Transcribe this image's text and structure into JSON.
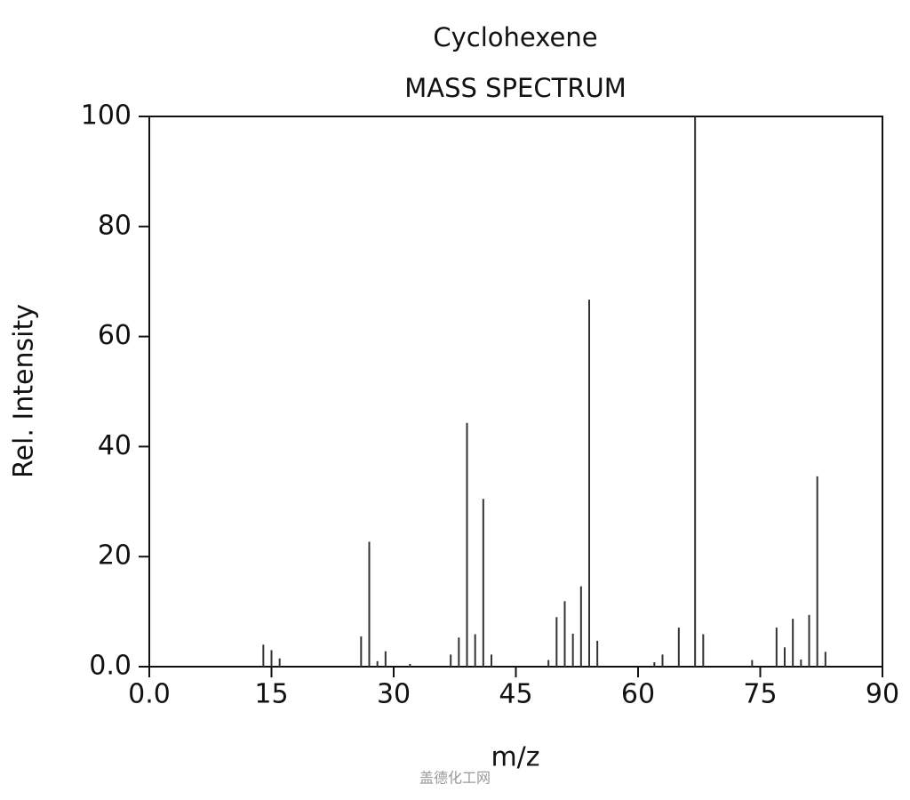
{
  "chart_data": {
    "type": "stem",
    "title": "Cyclohexene",
    "subtitle": "MASS SPECTRUM",
    "x_label": "m/z",
    "y_label": "Rel. Intensity",
    "watermark": "盖德化工网",
    "color": "#333333",
    "x": [
      14,
      15,
      16,
      26,
      27,
      28,
      29,
      32,
      37,
      38,
      39,
      40,
      41,
      42,
      49,
      50,
      51,
      52,
      53,
      54,
      55,
      62,
      63,
      65,
      67,
      68,
      74,
      77,
      78,
      79,
      80,
      81,
      82,
      83
    ],
    "values": [
      4,
      3,
      1.5,
      5.5,
      22.7,
      1,
      2.8,
      0.5,
      2.2,
      5.3,
      44.3,
      5.9,
      30.5,
      2.2,
      1.2,
      9,
      11.9,
      6,
      14.6,
      66.7,
      4.7,
      0.8,
      2.2,
      7.1,
      100,
      5.9,
      1.2,
      7.1,
      3.5,
      8.7,
      1.3,
      9.4,
      34.6,
      2.7
    ],
    "xlim": [
      0,
      90
    ],
    "ylim": [
      0,
      100
    ],
    "xticks": [
      {
        "value": 0,
        "label": "0.0"
      },
      15,
      30,
      45,
      60,
      75,
      90
    ],
    "yticks": [
      {
        "value": 0,
        "label": "0.0"
      },
      20,
      40,
      60,
      80,
      100
    ]
  }
}
